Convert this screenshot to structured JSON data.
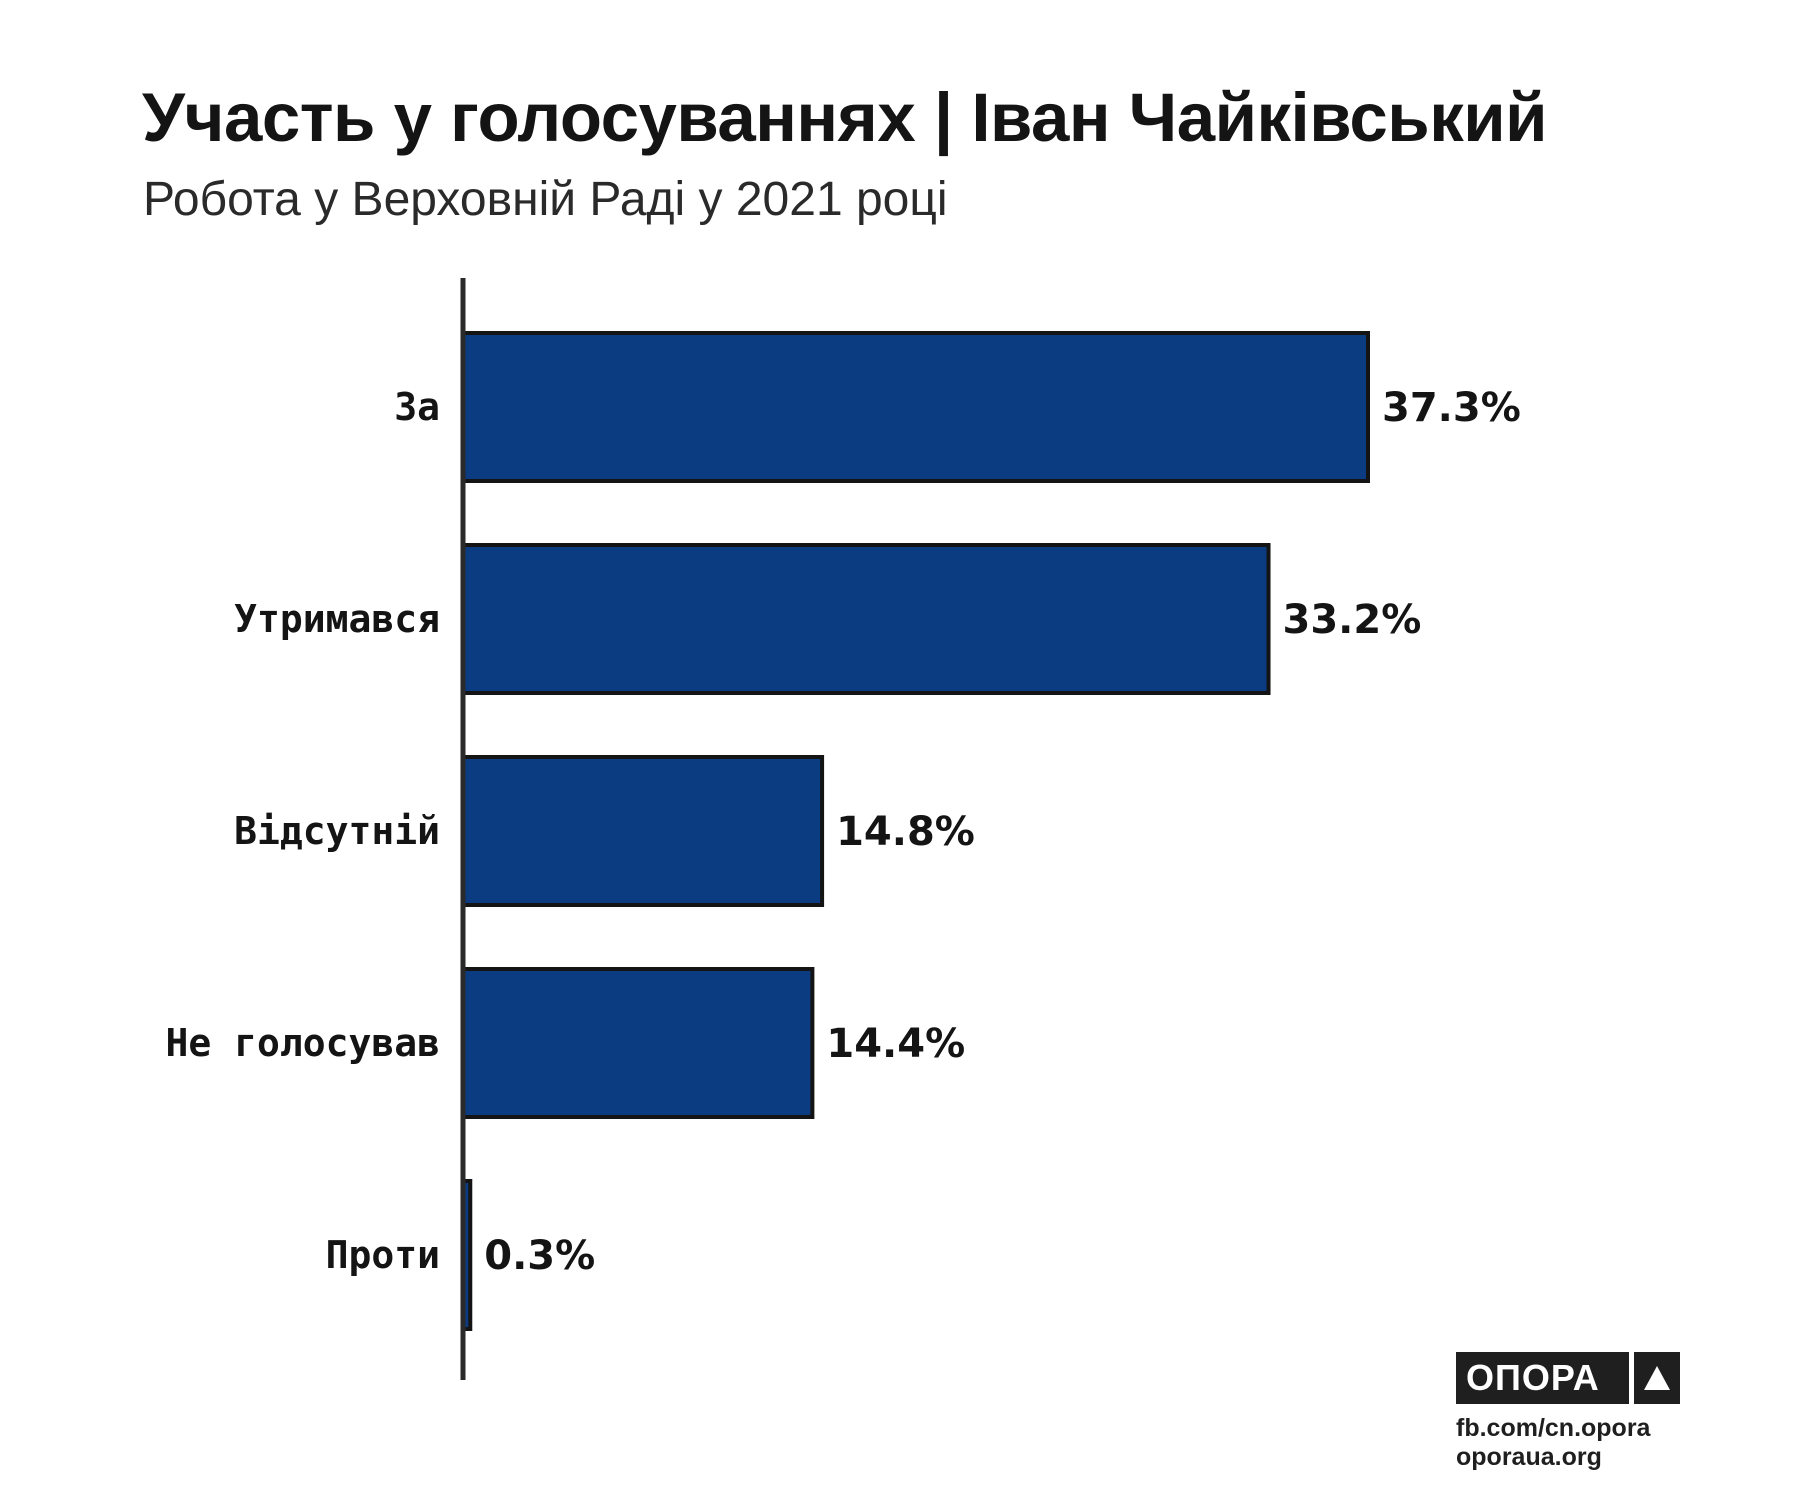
{
  "header": {
    "title": "Участь у голосуваннях | Іван Чайківський",
    "subtitle": "Робота у Верховній Раді у 2021 році"
  },
  "colors": {
    "bar_fill": "#0b3b80",
    "bar_stroke": "#141414",
    "axis": "#2a2a2a",
    "text": "#141414",
    "logo_bg": "#1f1f1f"
  },
  "chart_data": {
    "type": "bar",
    "orientation": "horizontal",
    "title": "Участь у голосуваннях | Іван Чайківський",
    "subtitle": "Робота у Верховній Раді у 2021 році",
    "categories": [
      "За",
      "Утримався",
      "Відсутній",
      "Не голосував",
      "Проти"
    ],
    "values": [
      37.3,
      33.2,
      14.8,
      14.4,
      0.3
    ],
    "value_labels": [
      "37.3%",
      "33.2%",
      "14.8%",
      "14.4%",
      "0.3%"
    ],
    "xlabel": "",
    "ylabel": "",
    "xlim": [
      0,
      37.3
    ],
    "grid": false,
    "legend": "none"
  },
  "logo": {
    "name": "ОПОРА",
    "icon": "triangle-icon",
    "links": [
      "fb.com/cn.opora",
      "oporaua.org"
    ]
  }
}
